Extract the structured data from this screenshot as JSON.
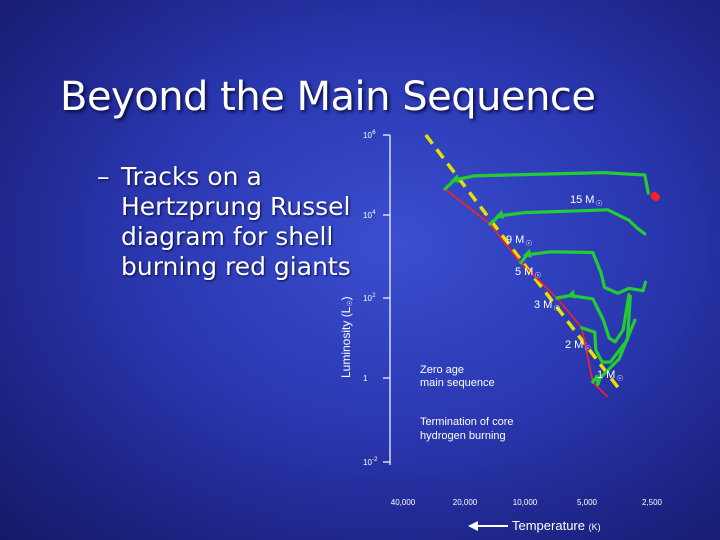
{
  "slide": {
    "title": "Beyond the Main Sequence",
    "bullet_dash": "–",
    "bullet_text": "Tracks on a Hertzprung Russel diagram for shell burning red giants"
  },
  "chart_data": {
    "type": "line",
    "title": "",
    "xlabel": "Temperature",
    "xlabel_unit": "(K)",
    "ylabel": "Luminosity",
    "ylabel_unit": "(L",
    "ylabel_sun_symbol": "☉",
    "ylabel_close": ")",
    "x_ticks": [
      "40,000",
      "20,000",
      "10,000",
      "5,000",
      "2,500"
    ],
    "x_values": [
      40000,
      20000,
      10000,
      5000,
      2500
    ],
    "x_scale": "log",
    "x_reversed": true,
    "y_scale": "log",
    "y_ticks": [
      {
        "base": "10",
        "exp": "6",
        "value": 1000000
      },
      {
        "base": "10",
        "exp": "4",
        "value": 10000
      },
      {
        "base": "10",
        "exp": "2",
        "value": 100
      },
      {
        "base": "1",
        "exp": "",
        "value": 1
      },
      {
        "base": "10",
        "exp": "-2",
        "value": 0.01
      }
    ],
    "grid": false,
    "sun_symbol": "☉",
    "mass_suffix": " M",
    "tracks": [
      {
        "mass": "15",
        "color": "#22cc33",
        "points": [
          [
            25000,
            45000
          ],
          [
            22500,
            75000
          ],
          [
            18000,
            95000
          ],
          [
            4200,
            115000
          ],
          [
            2700,
            100000
          ],
          [
            2600,
            35000
          ]
        ]
      },
      {
        "mass": "9",
        "color": "#22cc33",
        "points": [
          [
            15000,
            6000
          ],
          [
            13500,
            9500
          ],
          [
            10000,
            11500
          ],
          [
            4000,
            13500
          ],
          [
            3200,
            7500
          ],
          [
            2950,
            5000
          ],
          [
            2700,
            3500
          ]
        ]
      },
      {
        "mass": "5",
        "color": "#22cc33",
        "points": [
          [
            10500,
            700
          ],
          [
            9800,
            1100
          ],
          [
            7500,
            1300
          ],
          [
            4700,
            1250
          ],
          [
            4300,
            400
          ],
          [
            4150,
            180
          ],
          [
            3600,
            130
          ],
          [
            3200,
            170
          ],
          [
            2750,
            150
          ],
          [
            2680,
            240
          ]
        ]
      },
      {
        "mass": "3",
        "color": "#22cc33",
        "points": [
          [
            7000,
            100
          ],
          [
            6000,
            115
          ],
          [
            4700,
            95
          ],
          [
            4200,
            28
          ],
          [
            3950,
            10
          ],
          [
            3700,
            8
          ],
          [
            3400,
            16
          ],
          [
            3200,
            120
          ]
        ]
      },
      {
        "mass": "2",
        "color": "#22cc33",
        "points": [
          [
            5300,
            18
          ],
          [
            4600,
            14
          ],
          [
            4550,
            5
          ],
          [
            4250,
            2.5
          ],
          [
            3900,
            2.5
          ],
          [
            3250,
            9
          ],
          [
            3150,
            110
          ]
        ]
      },
      {
        "mass": "1",
        "color": "#22cc33",
        "points": [
          [
            4700,
            0.8
          ],
          [
            4500,
            1.1
          ],
          [
            4450,
            0.7
          ],
          [
            4350,
            1
          ],
          [
            3550,
            3
          ],
          [
            3000,
            28
          ]
        ]
      }
    ],
    "zams": {
      "name": "Zero age main sequence",
      "color": "#e8e000",
      "points": [
        [
          31000,
          1000000
        ],
        [
          3500,
          0.5
        ]
      ]
    },
    "tams": {
      "name": "Termination of core hydrogen burning",
      "color": "#ff2020",
      "points": [
        [
          25000,
          45000
        ],
        [
          15000,
          6000
        ],
        [
          10500,
          700
        ],
        [
          7000,
          100
        ],
        [
          5300,
          18
        ],
        [
          4700,
          0.8
        ],
        [
          4000,
          0.35
        ]
      ]
    },
    "red_dot": {
      "color": "#ff2020",
      "points": [
        [
          2600,
          38000
        ],
        [
          2550,
          35000
        ]
      ]
    },
    "annotations": [
      {
        "key": "zams",
        "line1": "Zero age",
        "line2": "main sequence"
      },
      {
        "key": "tams",
        "line1": "Termination of core",
        "line2": "hydrogen burning"
      }
    ],
    "arrow_color": "#ffffff",
    "axis_color": "#ffffff",
    "track_fill": "#22cc33"
  }
}
